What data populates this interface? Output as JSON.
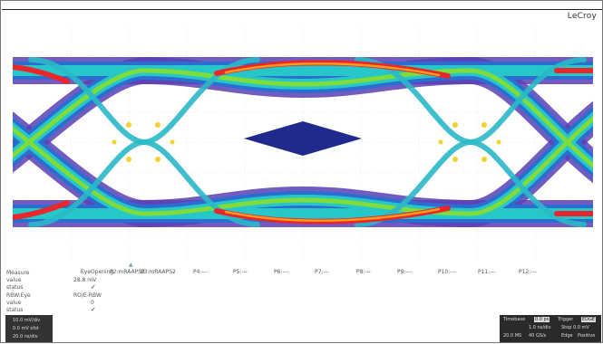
{
  "brand": "LeCroy",
  "params": [
    {
      "label": "EyeOpening"
    },
    {
      "label": "P2:mRAAPS2"
    },
    {
      "label": "P3:mRAAPS2"
    },
    {
      "label": "P4:---"
    },
    {
      "label": "P5:---"
    },
    {
      "label": "P6:---"
    },
    {
      "label": "P7:---"
    },
    {
      "label": "P8:---"
    },
    {
      "label": "P9:---"
    },
    {
      "label": "P10:---"
    },
    {
      "label": "P11:---"
    },
    {
      "label": "P12:---"
    }
  ],
  "measure": {
    "heading": "Measure",
    "rows": [
      {
        "label": "value",
        "value": "28.8 mV"
      },
      {
        "label": "status",
        "value": "✓"
      },
      {
        "label": "RBW:Eye",
        "value": "RO/E-RBW"
      },
      {
        "label": "value",
        "value": "0"
      },
      {
        "label": "status",
        "value": "✓"
      }
    ]
  },
  "channel": {
    "lines": [
      "10.0 mV/div",
      "0.0 mV ofst",
      "20.0 ns/div"
    ]
  },
  "timebase": {
    "timebase_label": "Timebase",
    "timebase_value": "0.0 ps",
    "trigger_label": "Trigger",
    "trigger_value": "EDGE",
    "row2_left": "1.0 ns/div",
    "row2_right": "Stop 0.0 mV",
    "row3_left": "20.0 MS",
    "row3_mid": "40 GS/s",
    "row3_edge": "Edge",
    "row3_slope": "Positive"
  }
}
